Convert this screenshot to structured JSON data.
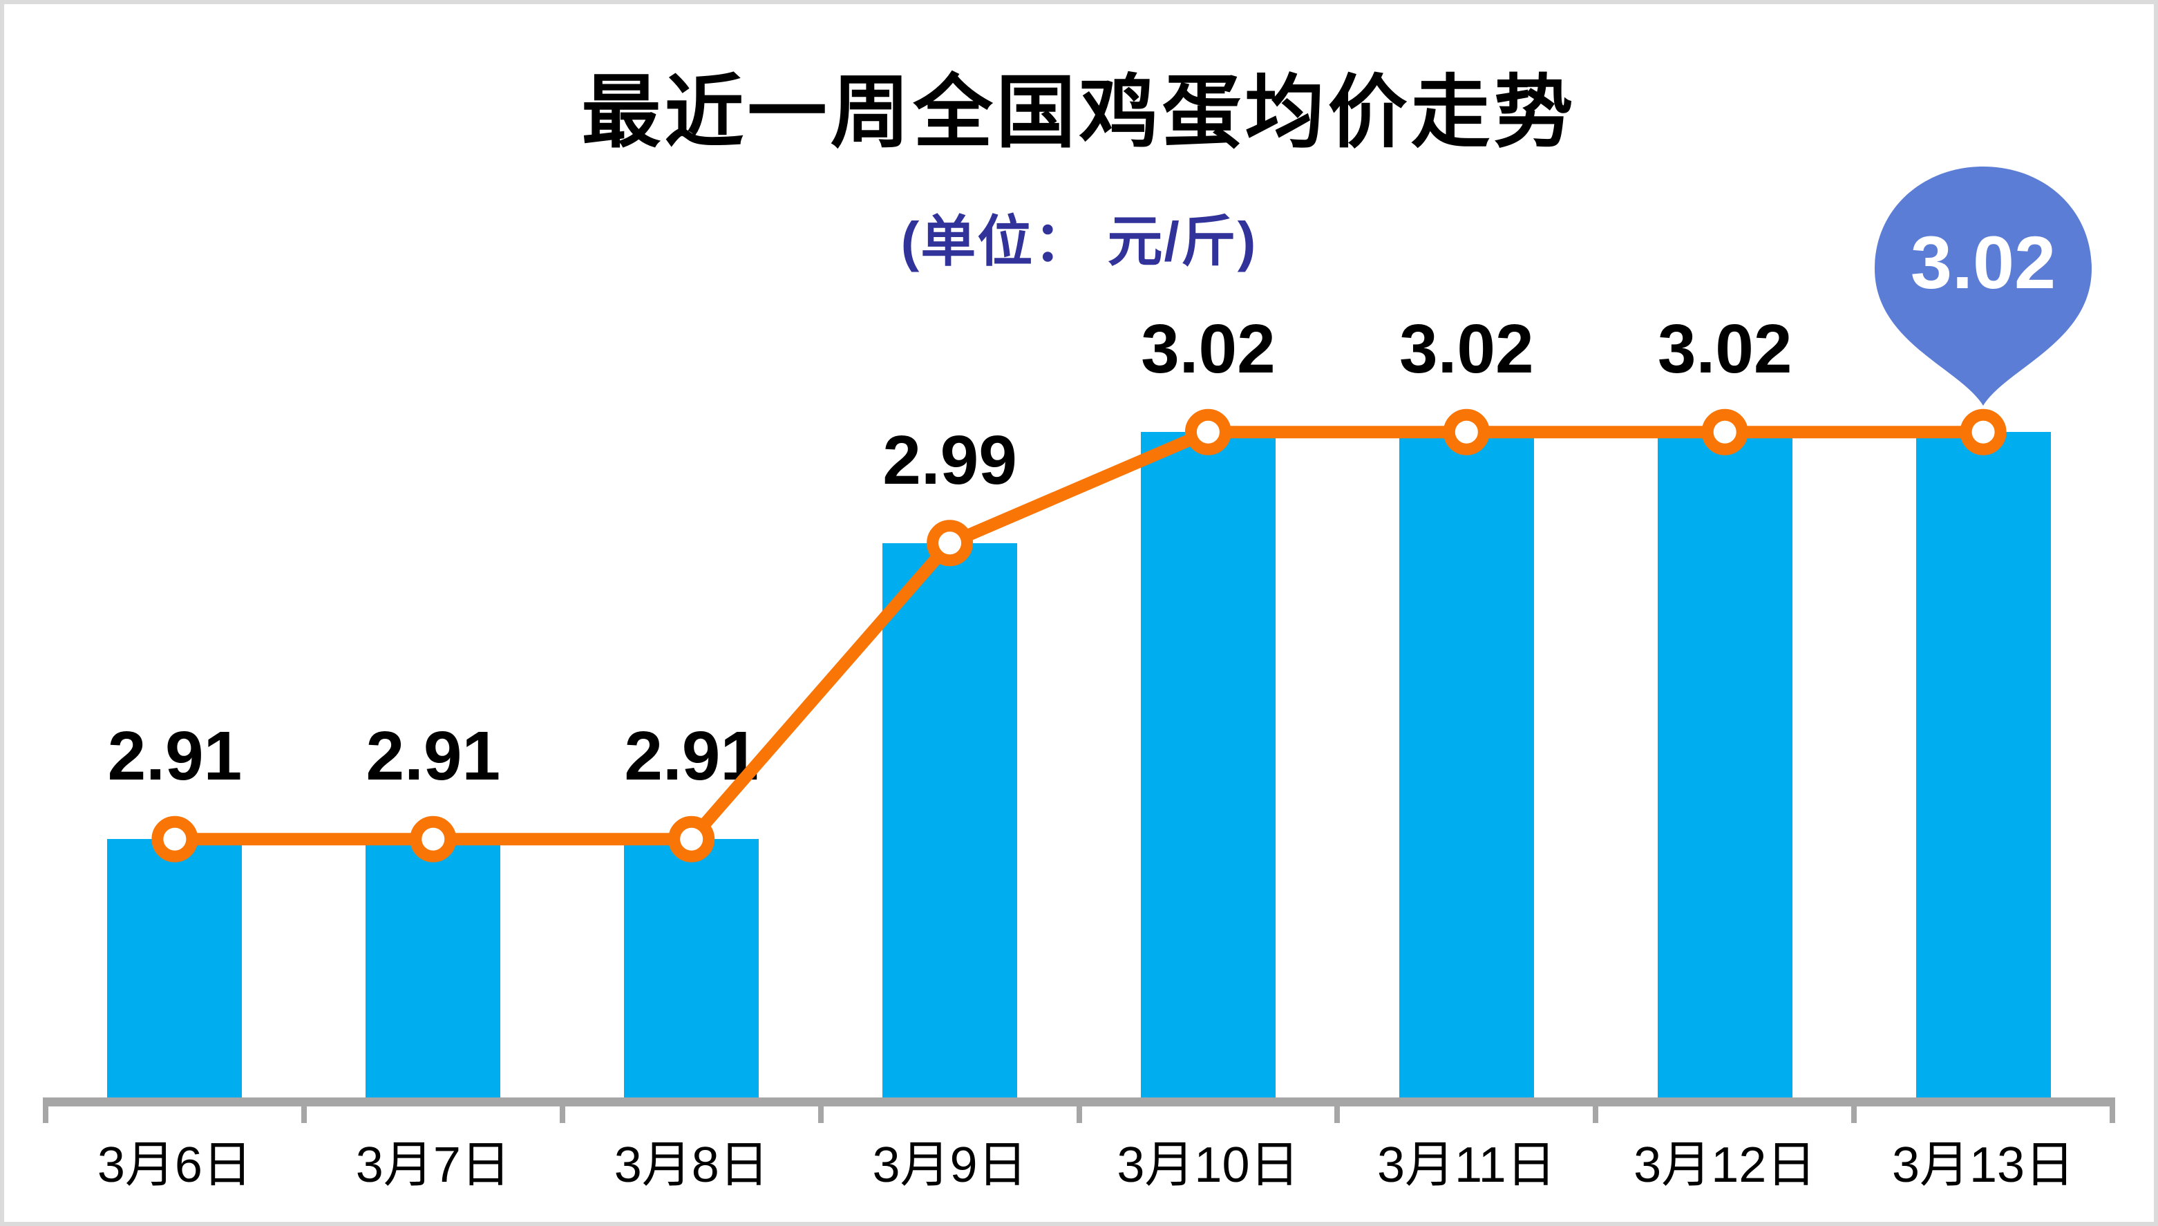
{
  "header": {
    "title": "最近一周全国鸡蛋均价走势",
    "subtitle": "(单位： 元/斤)",
    "title_color": "#000000",
    "subtitle_color": "#31339B"
  },
  "chart_data": {
    "type": "bar",
    "overlay": "line",
    "title": "最近一周全国鸡蛋均价走势",
    "subtitle": "(单位： 元/斤)",
    "categories": [
      "3月6日",
      "3月7日",
      "3月8日",
      "3月9日",
      "3月10日",
      "3月11日",
      "3月12日",
      "3月13日"
    ],
    "values": [
      2.91,
      2.91,
      2.91,
      2.99,
      3.02,
      3.02,
      3.02,
      3.02
    ],
    "value_labels": [
      "2.91",
      "2.91",
      "2.91",
      "2.99",
      "3.02",
      "3.02",
      "3.02",
      "3.02"
    ],
    "xlabel": "",
    "ylabel": "",
    "ylim": [
      2.84,
      3.06
    ],
    "y_axis_visible": false,
    "grid": false,
    "legend": false,
    "colors": {
      "bar": "#00AEEF",
      "line": "#F97506",
      "marker_fill": "#FFFFFF",
      "axis": "#A6A6A6",
      "value_label": "#000000",
      "date_label": "#000000"
    },
    "callout": {
      "index": 7,
      "label": "3.02",
      "shape": "map-pin-balloon",
      "fill": "#5C7DD6",
      "text_color": "#FFFFFF"
    }
  }
}
